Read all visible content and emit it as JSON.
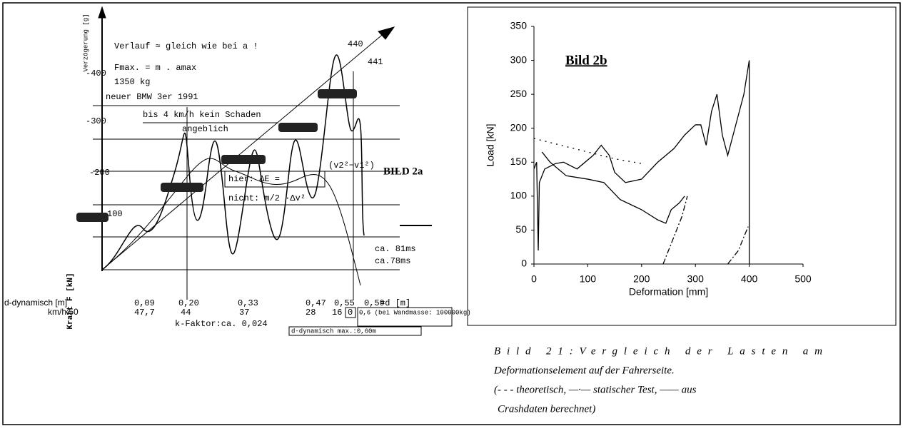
{
  "figure_left": {
    "texts": {
      "note": "Verlauf ≈ gleich wie bei a !",
      "peak1": "440",
      "peak2": "441",
      "y_title": "Verzögerung [g]",
      "y400": "-400",
      "formula": "Fmax. = m . amax",
      "mass": "1350 kg",
      "car": "neuer BMW 3er 1991",
      "y300": "-300",
      "damage": "bis 4 km/h kein Schaden",
      "claim": "angeblich",
      "label": "BILD 2a",
      "y200": "-200",
      "energy": "hier: ΔE =",
      "velocity": "(v2²−v1²)",
      "not": "nicht: m/2 ·Δv²",
      "y100": "100",
      "t1": "ca. 81ms",
      "t2": "ca.78ms",
      "force": "Kraft F [kN]",
      "d_label": "d-dynamisch [m]",
      "v_label": "km/h:50",
      "k": "k-Faktor:ca. 0,024",
      "dmax": "d-dynamisch max.:0,60m",
      "d_unit": "=d [m]",
      "wall": "0,6 (bei Wandmasse: 100000kg)"
    },
    "d_values": [
      "0,09",
      "0,20",
      "0,33",
      "0,47",
      "0,55",
      "0,59"
    ],
    "speeds": [
      "47,7",
      "44",
      "37",
      "28",
      "16",
      "0"
    ]
  },
  "chart_data": {
    "type": "line",
    "annotation": "Bild 2b",
    "x_label": "Deformation [mm]",
    "y_label": "Load [kN]",
    "xlim": [
      0,
      500
    ],
    "ylim": [
      0,
      350
    ],
    "xticks": [
      0,
      100,
      200,
      300,
      400,
      500
    ],
    "yticks": [
      0,
      50,
      100,
      150,
      200,
      250,
      300,
      350
    ],
    "series": [
      {
        "style": "solid",
        "color": "#000000",
        "x": [
          0,
          5,
          8,
          10,
          20,
          40,
          55,
          80,
          110,
          125,
          140,
          150,
          170,
          200,
          230,
          260,
          280,
          300,
          310,
          320,
          330,
          340,
          350,
          360,
          370,
          390,
          400,
          400
        ],
        "values": [
          140,
          150,
          20,
          120,
          140,
          148,
          150,
          140,
          160,
          175,
          160,
          135,
          120,
          125,
          150,
          170,
          190,
          205,
          205,
          175,
          225,
          250,
          190,
          160,
          190,
          250,
          300,
          0
        ]
      },
      {
        "style": "solid",
        "color": "#000000",
        "x": [
          15,
          30,
          60,
          100,
          130,
          160,
          200,
          230,
          245,
          255,
          270,
          280
        ],
        "values": [
          165,
          150,
          130,
          125,
          120,
          95,
          80,
          65,
          60,
          80,
          90,
          100
        ]
      },
      {
        "style": "dotted",
        "color": "#000000",
        "x": [
          0,
          50,
          100,
          150,
          200
        ],
        "values": [
          185,
          175,
          165,
          155,
          148
        ]
      },
      {
        "style": "dashdot",
        "color": "#000000",
        "x": [
          240,
          255,
          265,
          275,
          285,
          300,
          360,
          370,
          380,
          390,
          398
        ],
        "values": [
          0,
          30,
          50,
          70,
          100,
          null,
          0,
          10,
          20,
          40,
          55
        ]
      }
    ]
  },
  "caption": {
    "lines": [
      "Bild 21:Vergleich der Lasten am",
      "Deformationselement auf der Fahrerseite.",
      "(- - - theoretisch, —·— statischer Test, —— aus",
      "Crashdaten berechnet)"
    ]
  }
}
